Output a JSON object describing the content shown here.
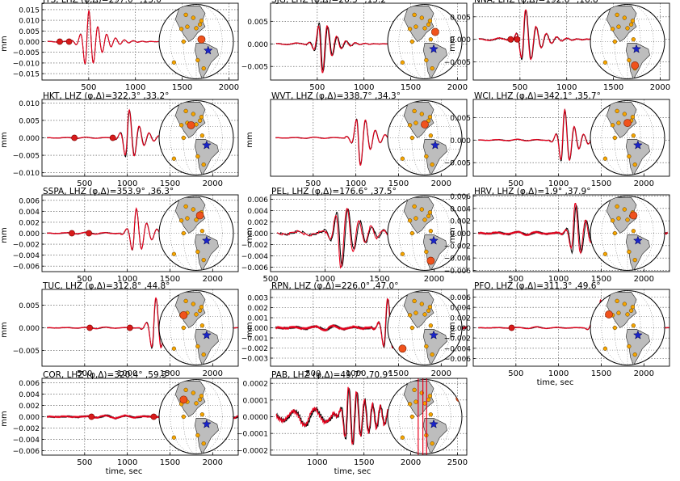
{
  "figure": {
    "ylabel": "mm",
    "xlabel": "time, sec"
  },
  "chart_data": [
    {
      "type": "line",
      "station": "JTS",
      "title": "JTS, LHZ (φ,Δ)=297.0° ,13.0°",
      "xlim": [
        0,
        2100
      ],
      "ylim": [
        -0.018,
        0.018
      ],
      "xticks": [
        500,
        1000,
        1500,
        2000
      ],
      "yticks": [
        -0.015,
        -0.01,
        -0.005,
        0.0,
        0.005,
        0.01,
        0.015
      ],
      "ytick_labels": [
        "−0.015",
        "−0.010",
        "−0.005",
        "0.000",
        "0.005",
        "0.010",
        "0.015"
      ],
      "onset": 480,
      "amp": 0.017,
      "period": 95,
      "decay": 0.0075,
      "mismatch": 0.05,
      "flip": 1,
      "noise": 0.0003,
      "pre": 0.0003,
      "marks": [
        190,
        290
      ],
      "xlabel": "",
      "globe": {
        "star": [
          0.66,
          0.62
        ],
        "hit": [
          0.57,
          0.47
        ],
        "red_lines": false
      }
    },
    {
      "type": "line",
      "station": "SJG",
      "title": "SJG, LHZ (φ,Δ)=26.3° ,15.2°",
      "xlim": [
        0,
        2100
      ],
      "ylim": [
        -0.008,
        0.009
      ],
      "xticks": [
        500,
        1000,
        1500,
        2000
      ],
      "yticks": [
        -0.005,
        0.0,
        0.005
      ],
      "ytick_labels": [
        "−0.005",
        "0.000",
        "0.005"
      ],
      "onset": 540,
      "amp": 0.0075,
      "period": 100,
      "decay": 0.009,
      "mismatch": 0.45,
      "flip": -1,
      "noise": 0.0002,
      "pre": 0.0002,
      "marks": [],
      "xlabel": "",
      "globe": {
        "star": [
          0.62,
          0.6
        ],
        "hit": [
          0.64,
          0.37
        ],
        "red_lines": false
      }
    },
    {
      "type": "line",
      "station": "NNA",
      "title": "NNA, LHZ (φ,Δ)=192.6° ,16.8°",
      "xlim": [
        0,
        2100
      ],
      "ylim": [
        -0.009,
        0.008
      ],
      "xticks": [
        500,
        1000,
        1500,
        2000
      ],
      "yticks": [
        -0.005,
        0.0,
        0.005
      ],
      "ytick_labels": [
        "−0.005",
        "0.000",
        "0.005"
      ],
      "onset": 540,
      "amp": 0.0078,
      "period": 110,
      "decay": 0.0075,
      "mismatch": 0.25,
      "flip": 1,
      "noise": 0.0003,
      "pre": 0.0003,
      "marks": [
        400,
        470
      ],
      "xlabel": "",
      "globe": {
        "star": [
          0.62,
          0.6
        ],
        "hit": [
          0.6,
          0.82
        ],
        "red_lines": false
      }
    },
    {
      "type": "line",
      "station": "HKT",
      "title": "HKT, LHZ (φ,Δ)=322.3° ,33.2°",
      "xlim": [
        0,
        2300
      ],
      "ylim": [
        -0.011,
        0.011
      ],
      "xticks": [
        500,
        1000,
        1500,
        2000
      ],
      "yticks": [
        -0.01,
        -0.005,
        0.0,
        0.005,
        0.01
      ],
      "ytick_labels": [
        "−0.010",
        "−0.005",
        "0.000",
        "0.005",
        "0.010"
      ],
      "onset": 1000,
      "amp": 0.0095,
      "period": 115,
      "decay": 0.0075,
      "mismatch": 0.2,
      "flip": 1,
      "noise": 0.0002,
      "pre": 0.0002,
      "marks": [
        380,
        830
      ],
      "xlabel": "",
      "globe": {
        "star": [
          0.64,
          0.6
        ],
        "hit": [
          0.43,
          0.33
        ],
        "red_lines": false
      }
    },
    {
      "type": "line",
      "station": "WVT",
      "title": "WVT, LHZ (φ,Δ)=338.7° ,34.3°",
      "xlim": [
        0,
        2300
      ],
      "ylim": [
        -0.011,
        0.011
      ],
      "xticks": [
        500,
        1000,
        1500,
        2000
      ],
      "yticks": [],
      "ytick_labels": [],
      "onset": 1030,
      "amp": 0.0095,
      "period": 115,
      "decay": 0.0075,
      "mismatch": 0.15,
      "flip": -1,
      "noise": 0.0002,
      "pre": 0.0002,
      "marks": [],
      "xlabel": "",
      "globe": {
        "star": [
          0.64,
          0.6
        ],
        "hit": [
          0.5,
          0.32
        ],
        "red_lines": false
      }
    },
    {
      "type": "line",
      "station": "WCI",
      "title": "WCI, LHZ (φ,Δ)=342.1° ,35.7°",
      "xlim": [
        0,
        2300
      ],
      "ylim": [
        -0.008,
        0.009
      ],
      "xticks": [
        500,
        1000,
        1500,
        2000
      ],
      "yticks": [
        -0.005,
        0.0,
        0.005
      ],
      "ytick_labels": [
        "−0.005",
        "0.000",
        "0.005"
      ],
      "onset": 1050,
      "amp": 0.008,
      "period": 110,
      "decay": 0.0075,
      "mismatch": 0.2,
      "flip": 1,
      "noise": 0.0002,
      "pre": 0.0002,
      "marks": [],
      "xlabel": "",
      "globe": {
        "star": [
          0.64,
          0.6
        ],
        "hit": [
          0.5,
          0.3
        ],
        "red_lines": false
      }
    },
    {
      "type": "line",
      "station": "SSPA",
      "title": "SSPA, LHZ (φ,Δ)=353.9° ,36.3°",
      "xlim": [
        0,
        2300
      ],
      "ylim": [
        -0.007,
        0.007
      ],
      "xticks": [
        500,
        1000,
        1500,
        2000
      ],
      "yticks": [
        -0.006,
        -0.004,
        -0.002,
        0.0,
        0.002,
        0.004,
        0.006
      ],
      "ytick_labels": [
        "−0.006",
        "−0.004",
        "−0.002",
        "0.000",
        "0.002",
        "0.004",
        "0.006"
      ],
      "onset": 1080,
      "amp": 0.0055,
      "period": 120,
      "decay": 0.0075,
      "mismatch": 0.1,
      "flip": 1,
      "noise": 0.0002,
      "pre": 0.0002,
      "marks": [
        350,
        550
      ],
      "xlabel": "",
      "globe": {
        "star": [
          0.64,
          0.6
        ],
        "hit": [
          0.55,
          0.26
        ],
        "red_lines": false
      }
    },
    {
      "type": "line",
      "station": "PEL",
      "title": "PEL, LHZ (φ,Δ)=176.6° ,37.5°",
      "xlim": [
        500,
        2300
      ],
      "ylim": [
        -0.0068,
        0.0068
      ],
      "xticks": [
        500,
        1000,
        1500,
        2000
      ],
      "yticks": [
        -0.006,
        -0.004,
        -0.002,
        0.0,
        0.002,
        0.004,
        0.006
      ],
      "ytick_labels": [
        "−0.006",
        "−0.004",
        "−0.002",
        "0.000",
        "0.002",
        "0.004",
        "0.006"
      ],
      "onset": 1130,
      "amp": 0.0068,
      "period": 110,
      "decay": 0.006,
      "mismatch": 0.55,
      "flip": -1,
      "noise": 0.0006,
      "pre": 0.0004,
      "marks": [],
      "xlabel": "",
      "globe": {
        "star": [
          0.62,
          0.6
        ],
        "hit": [
          0.58,
          0.87
        ],
        "red_lines": false
      }
    },
    {
      "type": "line",
      "station": "HRV",
      "title": "HRV, LHZ (φ,Δ)=1.9° ,37.9°",
      "xlim": [
        0,
        2300
      ],
      "ylim": [
        -0.0062,
        0.0062
      ],
      "xticks": [
        500,
        1000,
        1500,
        2000
      ],
      "yticks": [
        -0.006,
        -0.004,
        -0.002,
        0.0,
        0.002,
        0.004,
        0.006
      ],
      "ytick_labels": [
        "−0.006",
        "−0.004",
        "−0.002",
        "0.000",
        "0.002",
        "0.004",
        "0.006"
      ],
      "onset": 1180,
      "amp": 0.0055,
      "period": 120,
      "decay": 0.007,
      "mismatch": 0.6,
      "flip": 1,
      "noise": 0.0004,
      "pre": 0.0003,
      "marks": [],
      "xlabel": "",
      "globe": {
        "star": [
          0.64,
          0.6
        ],
        "hit": [
          0.58,
          0.26
        ],
        "red_lines": false
      }
    },
    {
      "type": "line",
      "station": "TUC",
      "title": "TUC, LHZ (φ,Δ)=312.8° ,44.8°",
      "xlim": [
        0,
        2300
      ],
      "ylim": [
        -0.0085,
        0.0085
      ],
      "xticks": [
        500,
        1000,
        1500,
        2000
      ],
      "yticks": [
        -0.005,
        0.0,
        0.005
      ],
      "ytick_labels": [
        "−0.005",
        "0.000",
        "0.005"
      ],
      "onset": 1310,
      "amp": 0.008,
      "period": 120,
      "decay": 0.007,
      "mismatch": 0.15,
      "flip": 1,
      "noise": 0.0002,
      "pre": 0.0002,
      "marks": [
        560,
        1030
      ],
      "xlabel": "",
      "globe": {
        "star": [
          0.64,
          0.6
        ],
        "hit": [
          0.33,
          0.33
        ],
        "red_lines": false
      }
    },
    {
      "type": "line",
      "station": "RPN",
      "title": "RPN, LHZ (φ,Δ)=226.0° ,47.0°",
      "xlim": [
        0,
        2300
      ],
      "ylim": [
        -0.0038,
        0.0038
      ],
      "xticks": [
        500,
        1000,
        1500,
        2000
      ],
      "yticks": [
        -0.003,
        -0.002,
        -0.001,
        0.0,
        0.001,
        0.002,
        0.003
      ],
      "ytick_labels": [
        "−0.003",
        "−0.002",
        "−0.001",
        "0.000",
        "0.001",
        "0.002",
        "0.003"
      ],
      "onset": 1350,
      "amp": 0.0034,
      "period": 115,
      "decay": 0.0065,
      "mismatch": 0.25,
      "flip": 1,
      "noise": 0.0003,
      "pre": 0.00025,
      "marks": [],
      "xlabel": "",
      "globe": {
        "star": [
          0.62,
          0.6
        ],
        "hit": [
          0.2,
          0.78
        ],
        "red_lines": false
      }
    },
    {
      "type": "line",
      "station": "PFO",
      "title": "PFO, LHZ (φ,Δ)=311.3° ,49.6°",
      "xlim": [
        0,
        2300
      ],
      "ylim": [
        -0.0075,
        0.0075
      ],
      "xticks": [
        500,
        1000,
        1500,
        2000
      ],
      "yticks": [
        -0.006,
        -0.004,
        -0.002,
        0.0,
        0.002,
        0.004,
        0.006
      ],
      "ytick_labels": [
        "−0.006",
        "−0.004",
        "−0.002",
        "0.000",
        "0.002",
        "0.004",
        "0.006"
      ],
      "onset": 1470,
      "amp": 0.0065,
      "period": 110,
      "decay": 0.007,
      "mismatch": 0.15,
      "flip": 1,
      "noise": 0.0002,
      "pre": 0.0002,
      "marks": [
        450
      ],
      "xlabel": "time, sec",
      "globe": {
        "star": [
          0.64,
          0.6
        ],
        "hit": [
          0.25,
          0.32
        ],
        "red_lines": false
      }
    },
    {
      "type": "line",
      "station": "COR",
      "title": "COR, LHZ (φ,Δ)=320.4° ,59.3°",
      "xlim": [
        0,
        2300
      ],
      "ylim": [
        -0.0068,
        0.0068
      ],
      "xticks": [
        500,
        1000,
        1500,
        2000
      ],
      "yticks": [
        -0.006,
        -0.004,
        -0.002,
        0.0,
        0.002,
        0.004,
        0.006
      ],
      "ytick_labels": [
        "−0.006",
        "−0.004",
        "−0.002",
        "0.000",
        "0.002",
        "0.004",
        "0.006"
      ],
      "onset": 1700,
      "amp": 0.0055,
      "period": 120,
      "decay": 0.006,
      "mismatch": 0.8,
      "flip": 1,
      "noise": 0.0004,
      "pre": 0.0003,
      "marks": [
        580,
        1310
      ],
      "xlabel": "time, sec",
      "globe": {
        "star": [
          0.64,
          0.6
        ],
        "hit": [
          0.33,
          0.27
        ],
        "red_lines": false
      }
    },
    {
      "type": "line",
      "station": "PAB",
      "title": "PAB, LHZ (φ,Δ)=49.7° ,70.9°",
      "xlim": [
        500,
        2600
      ],
      "ylim": [
        -0.00023,
        0.00023
      ],
      "xticks": [
        1000,
        1500,
        2000,
        2500
      ],
      "yticks": [
        -0.0002,
        -0.0001,
        0.0,
        0.0001,
        0.0002
      ],
      "ytick_labels": [
        "−0.0002",
        "−0.0001",
        "0.0000",
        "0.0001",
        "0.0002"
      ],
      "onset": 1320,
      "amp": 0.0002,
      "period": 85,
      "decay": 0.0035,
      "mismatch": 0.5,
      "flip": 1,
      "noise": 4e-05,
      "pre": 6e-05,
      "marks": [],
      "xlabel": "time, sec",
      "globe": {
        "star": [
          0.62,
          0.6
        ],
        "hit": [
          0.97,
          0.25
        ],
        "red_lines": true
      }
    }
  ]
}
